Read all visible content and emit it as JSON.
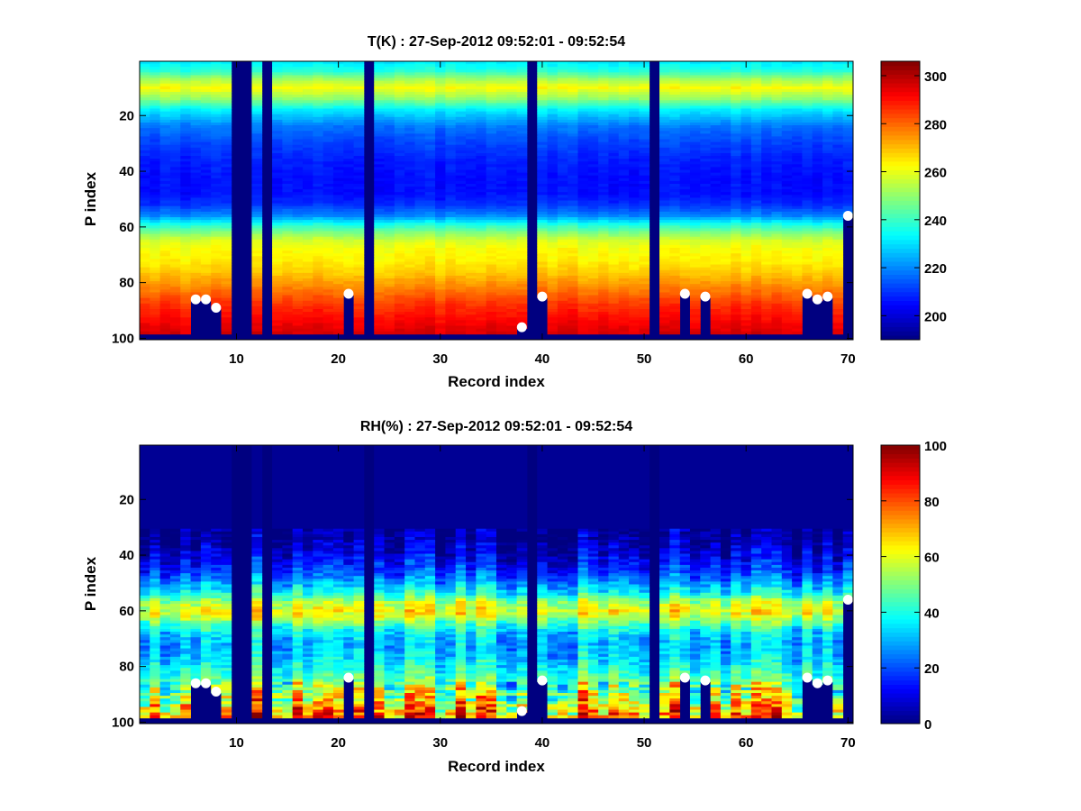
{
  "figure": {
    "background": "#ffffff"
  },
  "chart_data": [
    {
      "type": "heatmap",
      "title": "T(K) : 27-Sep-2012 09:52:01 - 09:52:54",
      "xlabel": "Record index",
      "ylabel": "P index",
      "xlim": [
        0.5,
        70.5
      ],
      "ylim": [
        0.5,
        100.5
      ],
      "y_reversed": true,
      "xticks": [
        10,
        20,
        30,
        40,
        50,
        60,
        70
      ],
      "yticks": [
        20,
        40,
        60,
        80,
        100
      ],
      "colormap": "jet",
      "clim": [
        190,
        306
      ],
      "colorbar_ticks": [
        200,
        220,
        240,
        260,
        280,
        300
      ],
      "n_records": 70,
      "n_levels": 100,
      "missing_records": [
        10,
        11,
        13,
        23,
        39,
        51
      ],
      "profile_bottom_level": 98,
      "vertical_profile": {
        "levels": [
          1,
          4,
          7,
          10,
          14,
          18,
          24,
          30,
          36,
          42,
          48,
          52,
          56,
          59,
          62,
          65,
          68,
          72,
          76,
          80,
          84,
          88,
          92,
          96,
          98
        ],
        "values": [
          232,
          238,
          252,
          262,
          250,
          232,
          218,
          212,
          208,
          206,
          206,
          210,
          220,
          236,
          248,
          258,
          262,
          264,
          268,
          274,
          280,
          286,
          290,
          294,
          296
        ]
      },
      "surface_markers": [
        {
          "x": 6,
          "y": 86
        },
        {
          "x": 7,
          "y": 86
        },
        {
          "x": 8,
          "y": 89
        },
        {
          "x": 21,
          "y": 84
        },
        {
          "x": 38,
          "y": 96
        },
        {
          "x": 40,
          "y": 85
        },
        {
          "x": 54,
          "y": 84
        },
        {
          "x": 56,
          "y": 85
        },
        {
          "x": 66,
          "y": 84
        },
        {
          "x": 67,
          "y": 86
        },
        {
          "x": 68,
          "y": 85
        },
        {
          "x": 70,
          "y": 56
        }
      ],
      "marker_color": "#ffffff"
    },
    {
      "type": "heatmap",
      "title": "RH(%) : 27-Sep-2012 09:52:01 - 09:52:54",
      "xlabel": "Record index",
      "ylabel": "P index",
      "xlim": [
        0.5,
        70.5
      ],
      "ylim": [
        0.5,
        100.5
      ],
      "y_reversed": true,
      "xticks": [
        10,
        20,
        30,
        40,
        50,
        60,
        70
      ],
      "yticks": [
        20,
        40,
        60,
        80,
        100
      ],
      "colormap": "jet",
      "clim": [
        0,
        100
      ],
      "colorbar_ticks": [
        0,
        20,
        40,
        60,
        80,
        100
      ],
      "n_records": 70,
      "n_levels": 100,
      "missing_records": [
        10,
        11,
        13,
        23,
        39,
        51
      ],
      "profile_bottom_level": 98,
      "vertical_profile": {
        "levels": [
          1,
          30,
          36,
          40,
          46,
          50,
          54,
          57,
          60,
          62,
          65,
          68,
          72,
          76,
          80,
          84,
          88,
          92,
          95,
          98
        ],
        "values": [
          2,
          2,
          5,
          10,
          18,
          28,
          40,
          55,
          62,
          58,
          45,
          35,
          30,
          32,
          38,
          45,
          52,
          60,
          70,
          75
        ]
      },
      "surface_markers": [
        {
          "x": 6,
          "y": 86
        },
        {
          "x": 7,
          "y": 86
        },
        {
          "x": 8,
          "y": 89
        },
        {
          "x": 21,
          "y": 84
        },
        {
          "x": 38,
          "y": 96
        },
        {
          "x": 40,
          "y": 85
        },
        {
          "x": 54,
          "y": 84
        },
        {
          "x": 56,
          "y": 85
        },
        {
          "x": 66,
          "y": 84
        },
        {
          "x": 67,
          "y": 86
        },
        {
          "x": 68,
          "y": 85
        },
        {
          "x": 70,
          "y": 56
        }
      ],
      "marker_color": "#ffffff"
    }
  ]
}
